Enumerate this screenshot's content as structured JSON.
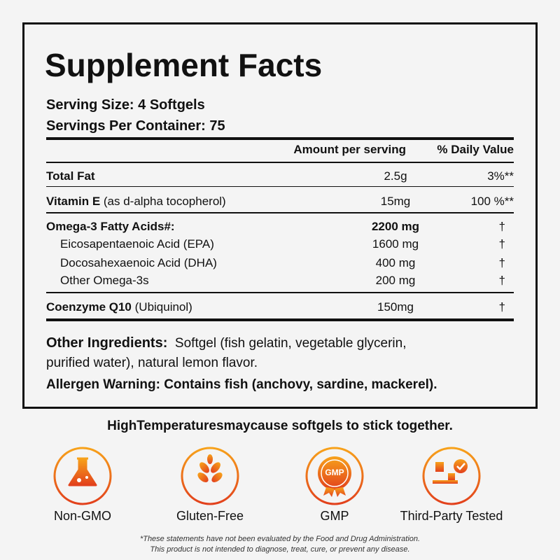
{
  "title": "Supplement Facts",
  "serving_size": "Serving Size: 4 Softgels",
  "servings_per_container": "Servings Per Container: 75",
  "header": {
    "amount": "Amount per serving",
    "daily_value": "% Daily Value"
  },
  "rows": [
    {
      "name": "Total Fat",
      "amount": "2.5g",
      "dv": "3%**"
    },
    {
      "name": "Vitamin E",
      "note": "(as d-alpha tocopherol)",
      "amount": "15mg",
      "dv": "100 %**"
    },
    {
      "name": "Omega-3 Fatty Acids#:",
      "amount": "2200 mg",
      "dv": "†"
    },
    {
      "name": "Eicosapentaenoic Acid (EPA)",
      "amount": "1600 mg",
      "dv": "†"
    },
    {
      "name": "Docosahexaenoic Acid (DHA)",
      "amount": "400 mg",
      "dv": "†"
    },
    {
      "name": "Other Omega-3s",
      "amount": "200 mg",
      "dv": "†"
    },
    {
      "name": "Coenzyme Q10",
      "note": "(Ubiquinol)",
      "amount": "150mg",
      "dv": "†"
    }
  ],
  "other_ingredients": {
    "label": "Other Ingredients:",
    "lines": [
      "Softgel (fish gelatin, vegetable glycerin,",
      "purified water), natural lemon flavor."
    ]
  },
  "allergen_warning": "Allergen Warning: Contains fish (anchovy, sardine, mackerel).",
  "storage_warning": "HighTemperaturesmaycause softgels to stick together.",
  "badges": [
    {
      "label": "Non-GMO"
    },
    {
      "label": "Gluten-Free"
    },
    {
      "label": "GMP",
      "icon_text": "GMP"
    },
    {
      "label": "Third-Party Tested"
    }
  ],
  "disclaimer": [
    "*These statements have not been evaluated by the Food and Drug Administration.",
    "This product is not intended to diagnose, treat, cure, or prevent any disease."
  ]
}
